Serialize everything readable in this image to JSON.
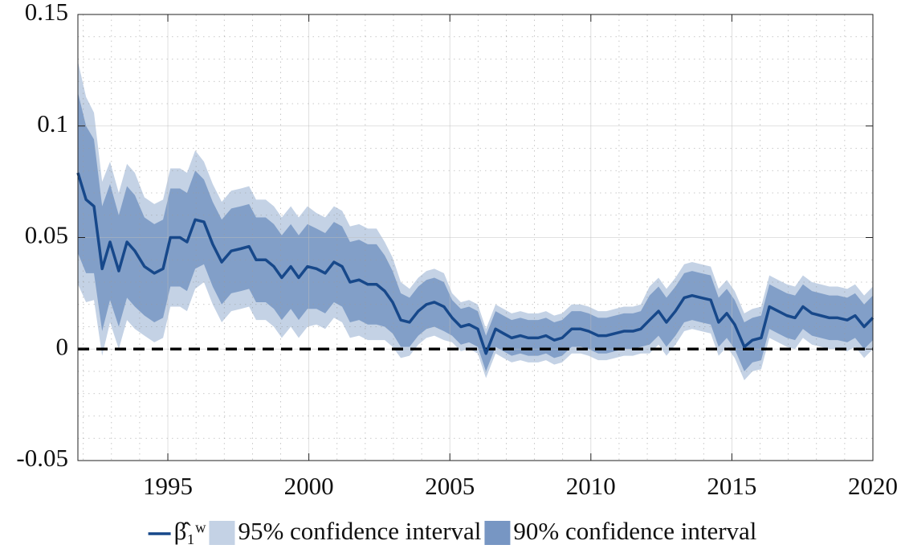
{
  "chart_data": {
    "type": "line",
    "x": [
      1991.81,
      1992.1,
      1992.38,
      1992.67,
      1992.95,
      1993.26,
      1993.55,
      1993.83,
      1994.17,
      1994.52,
      1994.83,
      1995.09,
      1995.43,
      1995.68,
      1995.97,
      1996.28,
      1996.59,
      1996.91,
      1997.25,
      1997.59,
      1997.88,
      1998.13,
      1998.47,
      1998.76,
      1999.04,
      1999.36,
      1999.64,
      1999.95,
      2000.27,
      2000.58,
      2000.89,
      2001.18,
      2001.46,
      2001.78,
      2002.09,
      2002.4,
      2002.69,
      2002.97,
      2003.26,
      2003.57,
      2003.88,
      2004.17,
      2004.45,
      2004.79,
      2005.08,
      2005.39,
      2005.68,
      2005.99,
      2006.28,
      2006.62,
      2006.9,
      2007.19,
      2007.5,
      2007.78,
      2008.13,
      2008.41,
      2008.7,
      2008.98,
      2009.32,
      2009.64,
      2009.92,
      2010.26,
      2010.55,
      2010.86,
      2011.17,
      2011.49,
      2011.77,
      2012.08,
      2012.4,
      2012.68,
      2013.0,
      2013.31,
      2013.59,
      2013.91,
      2014.25,
      2014.53,
      2014.82,
      2015.1,
      2015.44,
      2015.73,
      2016.04,
      2016.33,
      2016.64,
      2016.95,
      2017.24,
      2017.52,
      2017.84,
      2018.15,
      2018.46,
      2018.75,
      2019.09,
      2019.37,
      2019.69,
      2020.0
    ],
    "bands": [
      {
        "name": "95% confidence interval",
        "color": "#c4d2e5",
        "lower": [
          0.029,
          0.021,
          0.022,
          -0.003,
          0.012,
          0,
          0.013,
          0.009,
          0.006,
          0.003,
          0.005,
          0.019,
          0.019,
          0.017,
          0.027,
          0.03,
          0.02,
          0.012,
          0.017,
          0.018,
          0.019,
          0.013,
          0.013,
          0.01,
          0.005,
          0.01,
          0.005,
          0.01,
          0.011,
          0.009,
          0.014,
          0.012,
          0.005,
          0.006,
          0.004,
          0.004,
          0.004,
          0.001,
          -0.004,
          -0.003,
          0.002,
          0.005,
          0.006,
          0.004,
          0.003,
          -0.001,
          0,
          -0.002,
          -0.013,
          -0.002,
          -0.004,
          -0.006,
          -0.005,
          -0.006,
          -0.006,
          -0.005,
          -0.007,
          -0.006,
          -0.002,
          -0.002,
          -0.003,
          -0.005,
          -0.005,
          -0.004,
          -0.003,
          -0.003,
          -0.002,
          -0.002,
          0.002,
          -0.003,
          0.002,
          0.008,
          0.009,
          0.008,
          0.007,
          -0.003,
          0.001,
          -0.004,
          -0.014,
          -0.01,
          -0.009,
          0.005,
          0.003,
          0.001,
          0,
          0.005,
          0.002,
          0.001,
          0,
          0,
          -0.001,
          0.001,
          -0.004,
          0
        ],
        "upper": [
          0.129,
          0.113,
          0.106,
          0.075,
          0.084,
          0.07,
          0.083,
          0.079,
          0.068,
          0.065,
          0.067,
          0.081,
          0.081,
          0.079,
          0.089,
          0.084,
          0.074,
          0.066,
          0.071,
          0.072,
          0.073,
          0.067,
          0.067,
          0.064,
          0.059,
          0.064,
          0.059,
          0.064,
          0.061,
          0.059,
          0.064,
          0.062,
          0.055,
          0.056,
          0.054,
          0.054,
          0.048,
          0.041,
          0.03,
          0.027,
          0.032,
          0.035,
          0.036,
          0.034,
          0.025,
          0.021,
          0.022,
          0.02,
          0.009,
          0.02,
          0.018,
          0.016,
          0.017,
          0.016,
          0.016,
          0.017,
          0.015,
          0.016,
          0.02,
          0.02,
          0.019,
          0.017,
          0.017,
          0.018,
          0.019,
          0.019,
          0.02,
          0.028,
          0.032,
          0.027,
          0.032,
          0.038,
          0.039,
          0.038,
          0.037,
          0.027,
          0.031,
          0.026,
          0.016,
          0.018,
          0.019,
          0.033,
          0.031,
          0.029,
          0.028,
          0.033,
          0.03,
          0.029,
          0.028,
          0.028,
          0.027,
          0.029,
          0.024,
          0.028
        ]
      },
      {
        "name": "90% confidence interval",
        "color": "#7796c3",
        "lower": [
          0.043,
          0.034,
          0.034,
          0.008,
          0.022,
          0.01,
          0.023,
          0.019,
          0.015,
          0.012,
          0.014,
          0.028,
          0.028,
          0.026,
          0.036,
          0.038,
          0.028,
          0.02,
          0.025,
          0.026,
          0.027,
          0.021,
          0.021,
          0.018,
          0.013,
          0.018,
          0.013,
          0.018,
          0.018,
          0.016,
          0.021,
          0.019,
          0.012,
          0.013,
          0.011,
          0.011,
          0.01,
          0.007,
          0.001,
          0.001,
          0.006,
          0.009,
          0.01,
          0.008,
          0.006,
          0.002,
          0.003,
          0.001,
          -0.01,
          0.001,
          -0.001,
          -0.003,
          -0.002,
          -0.003,
          -0.003,
          -0.002,
          -0.004,
          -0.003,
          0.001,
          0.001,
          0,
          -0.002,
          -0.002,
          -0.001,
          0,
          0,
          0.001,
          0.002,
          0.006,
          0.001,
          0.006,
          0.012,
          0.013,
          0.012,
          0.011,
          0.001,
          0.005,
          0,
          -0.01,
          -0.006,
          -0.005,
          0.009,
          0.007,
          0.005,
          0.004,
          0.009,
          0.006,
          0.005,
          0.004,
          0.004,
          0.003,
          0.005,
          0,
          0.004
        ],
        "upper": [
          0.115,
          0.1,
          0.094,
          0.064,
          0.074,
          0.06,
          0.073,
          0.069,
          0.059,
          0.056,
          0.058,
          0.072,
          0.072,
          0.07,
          0.08,
          0.076,
          0.066,
          0.058,
          0.063,
          0.064,
          0.065,
          0.059,
          0.059,
          0.056,
          0.051,
          0.056,
          0.051,
          0.056,
          0.054,
          0.052,
          0.057,
          0.055,
          0.048,
          0.049,
          0.047,
          0.047,
          0.042,
          0.035,
          0.025,
          0.023,
          0.028,
          0.031,
          0.032,
          0.03,
          0.022,
          0.018,
          0.019,
          0.017,
          0.006,
          0.017,
          0.015,
          0.013,
          0.014,
          0.013,
          0.013,
          0.014,
          0.012,
          0.013,
          0.017,
          0.017,
          0.016,
          0.014,
          0.014,
          0.015,
          0.016,
          0.016,
          0.017,
          0.024,
          0.028,
          0.023,
          0.028,
          0.034,
          0.035,
          0.034,
          0.033,
          0.023,
          0.027,
          0.022,
          0.012,
          0.014,
          0.015,
          0.029,
          0.027,
          0.025,
          0.024,
          0.029,
          0.026,
          0.025,
          0.024,
          0.024,
          0.023,
          0.025,
          0.02,
          0.024
        ]
      }
    ],
    "series": [
      {
        "name": "β̂₁ʷ",
        "color": "#17488a",
        "values": [
          0.079,
          0.067,
          0.064,
          0.036,
          0.048,
          0.035,
          0.048,
          0.044,
          0.037,
          0.034,
          0.036,
          0.05,
          0.05,
          0.048,
          0.058,
          0.057,
          0.047,
          0.039,
          0.044,
          0.045,
          0.046,
          0.04,
          0.04,
          0.037,
          0.032,
          0.037,
          0.032,
          0.037,
          0.036,
          0.034,
          0.039,
          0.037,
          0.03,
          0.031,
          0.029,
          0.029,
          0.026,
          0.021,
          0.013,
          0.012,
          0.017,
          0.02,
          0.021,
          0.019,
          0.014,
          0.01,
          0.011,
          0.009,
          -0.002,
          0.009,
          0.007,
          0.005,
          0.006,
          0.005,
          0.005,
          0.006,
          0.004,
          0.005,
          0.009,
          0.009,
          0.008,
          0.006,
          0.006,
          0.007,
          0.008,
          0.008,
          0.009,
          0.013,
          0.017,
          0.012,
          0.017,
          0.023,
          0.024,
          0.023,
          0.022,
          0.012,
          0.016,
          0.011,
          0.001,
          0.004,
          0.005,
          0.019,
          0.017,
          0.015,
          0.014,
          0.019,
          0.016,
          0.015,
          0.014,
          0.014,
          0.013,
          0.015,
          0.01,
          0.014
        ]
      }
    ],
    "reference_line": {
      "value": 0,
      "color": "#000000",
      "style": "dashed"
    },
    "xlim": [
      1991.81,
      2020
    ],
    "ylim": [
      -0.05,
      0.15
    ],
    "xticks": [
      1995,
      2000,
      2005,
      2010,
      2015,
      2020
    ],
    "yticks": [
      -0.05,
      0,
      0.05,
      0.1,
      0.15
    ],
    "xminorticks": [
      1992,
      1993,
      1994,
      1996,
      1997,
      1998,
      1999,
      2001,
      2002,
      2003,
      2004,
      2006,
      2007,
      2008,
      2009,
      2011,
      2012,
      2013,
      2014,
      2016,
      2017,
      2018,
      2019
    ],
    "yminorticks": [
      -0.04,
      -0.03,
      -0.02,
      -0.01,
      0.01,
      0.02,
      0.03,
      0.04,
      0.06,
      0.07,
      0.08,
      0.09,
      0.11,
      0.12,
      0.13,
      0.14
    ],
    "grid": true,
    "legend": "bottom"
  }
}
